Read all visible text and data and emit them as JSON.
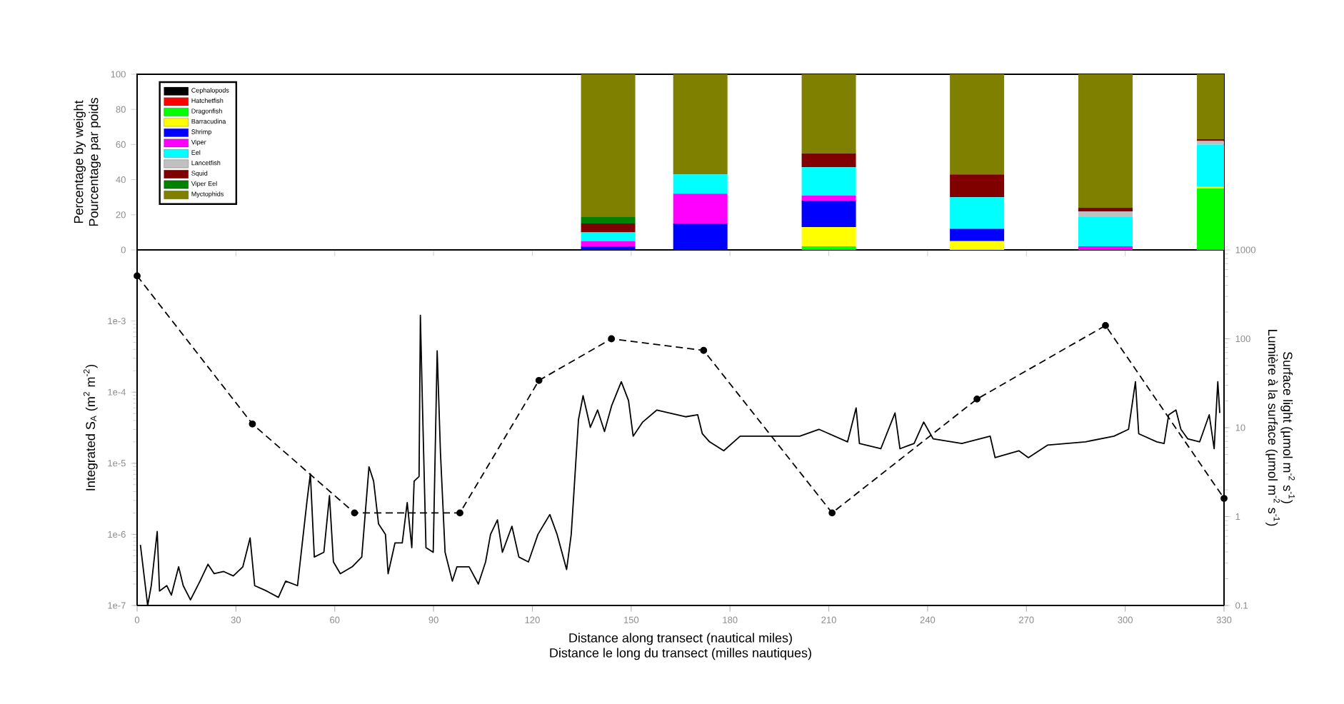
{
  "chart_data": [
    {
      "type": "bar",
      "stacked": true,
      "ylabel": "Percentage by weight\nPourcentage par poids",
      "x": [
        143,
        171,
        210,
        255,
        294,
        330
      ],
      "xlim": [
        0,
        330
      ],
      "xticks": [
        0,
        30,
        60,
        90,
        120,
        150,
        180,
        210,
        240,
        270,
        300,
        330
      ],
      "ylim": [
        0,
        100
      ],
      "yticks": [
        0,
        20,
        40,
        60,
        80,
        100
      ],
      "tick_labels": "y",
      "legend": "top left",
      "series": [
        {
          "name": "Cephalopods",
          "color": "#000000",
          "values": [
            0,
            0,
            0,
            0,
            0,
            0
          ]
        },
        {
          "name": "Hatchetfish",
          "color": "#ff0000",
          "values": [
            0,
            0,
            0,
            0,
            0,
            0
          ]
        },
        {
          "name": "Dragonfish",
          "color": "#00ff00",
          "values": [
            0,
            0,
            2,
            0,
            0,
            35
          ]
        },
        {
          "name": "Barracudina",
          "color": "#ffff00",
          "values": [
            0,
            0,
            11,
            5,
            0,
            1
          ]
        },
        {
          "name": "Shrimp",
          "color": "#0000ff",
          "values": [
            2,
            15,
            15,
            7,
            0,
            0
          ]
        },
        {
          "name": "Viper",
          "color": "#ff00ff",
          "values": [
            3,
            17,
            3,
            0,
            2,
            0
          ]
        },
        {
          "name": "Eel",
          "color": "#00ffff",
          "values": [
            5,
            11,
            16,
            18,
            17,
            24
          ]
        },
        {
          "name": "Lancetfish",
          "color": "#c0c0c0",
          "values": [
            0,
            0,
            0,
            0,
            3,
            2
          ]
        },
        {
          "name": "Squid",
          "color": "#800000",
          "values": [
            5,
            0,
            8,
            13,
            2,
            1
          ]
        },
        {
          "name": "Viper Eel",
          "color": "#008000",
          "values": [
            4,
            0,
            0,
            0,
            0,
            0
          ]
        },
        {
          "name": "Myctophids",
          "color": "#808000",
          "values": [
            81,
            57,
            45,
            57,
            76,
            37
          ]
        }
      ]
    },
    {
      "type": "line",
      "xlabel": "Distance along transect (nautical miles)\nDistance le long du transect (milles nautiques)",
      "ylabel": "Integrated S$_{A}$ (m$^{2}$ m$^{-2}$)",
      "xlim": [
        0,
        330
      ],
      "xticks": [
        0,
        30,
        60,
        90,
        120,
        150,
        180,
        210,
        240,
        270,
        300,
        330
      ],
      "ylim": [
        1e-07,
        0.01
      ],
      "yticks": [
        {
          "value": 1e-07,
          "label": "1e-7"
        },
        {
          "value": 1e-06,
          "label": "1e-6"
        },
        {
          "value": 1e-05,
          "label": "1e-5"
        },
        {
          "value": 0.0001,
          "label": "1e-4"
        },
        {
          "value": 0.001,
          "label": "1e-3"
        }
      ],
      "log": true,
      "series": [
        {
          "color": "#000000",
          "line_style": "solid",
          "marker": "none",
          "x": [
            1.0,
            3.2,
            4.3,
            6.1,
            6.8,
            9.0,
            10.4,
            12.6,
            14.0,
            16.2,
            19.1,
            21.5,
            23.4,
            26.3,
            29.2,
            32.1,
            34.3,
            35.7,
            39.3,
            42.9,
            45.1,
            48.7,
            51.6,
            52.6,
            53.8,
            56.7,
            58.4,
            59.6,
            61.7,
            65.3,
            68.2,
            70.4,
            71.8,
            73.3,
            75.4,
            76.2,
            78.3,
            80.5,
            82.0,
            83.4,
            84.1,
            85.6,
            86.0,
            86.6,
            87.7,
            89.9,
            91.1,
            92.1,
            93.5,
            95.7,
            97.1,
            100.8,
            103.6,
            105.8,
            107.3,
            109.4,
            110.9,
            113.8,
            115.9,
            118.8,
            121.7,
            125.3,
            127.5,
            130.4,
            131.8,
            132.6,
            134.0,
            135.4,
            137.6,
            139.8,
            141.9,
            144.1,
            147.0,
            149.2,
            150.6,
            153.5,
            157.8,
            166.5,
            170.2,
            171.6,
            173.8,
            178.1,
            183.1,
            192.5,
            201.2,
            207.0,
            215.7,
            218.3,
            219.3,
            225.8,
            230.1,
            231.6,
            235.9,
            238.8,
            241.7,
            250.4,
            259.0,
            260.5,
            267.7,
            270.6,
            276.4,
            287.9,
            296.6,
            301.0,
            303.1,
            304.1,
            309.6,
            311.8,
            313.2,
            315.4,
            316.9,
            319.0,
            322.6,
            325.5,
            327.0,
            328.1,
            328.7
          ],
          "values": [
            7.1e-07,
            1e-07,
            1.9e-07,
            1.1e-06,
            1.6e-07,
            1.9e-07,
            1.4e-07,
            3.5e-07,
            1.9e-07,
            1.2e-07,
            2.2e-07,
            3.8e-07,
            2.8e-07,
            3e-07,
            2.6e-07,
            3.5e-07,
            8.9e-07,
            1.9e-07,
            1.6e-07,
            1.3e-07,
            2.2e-07,
            1.9e-07,
            3e-06,
            7.1e-06,
            4.8e-07,
            5.6e-07,
            3.5e-06,
            4.1e-07,
            2.8e-07,
            3.5e-07,
            4.8e-07,
            8.9e-06,
            5.6e-06,
            1.4e-06,
            1e-06,
            2.8e-07,
            7.6e-07,
            7.6e-07,
            2.8e-06,
            6.5e-07,
            5.6e-06,
            6.5e-06,
            0.0012,
            7.6e-05,
            6.5e-07,
            5.6e-07,
            0.00038,
            1.4e-05,
            5.6e-07,
            2.2e-07,
            3.5e-07,
            3.5e-07,
            2e-07,
            4.1e-07,
            1e-06,
            1.6e-06,
            5.6e-07,
            1.3e-06,
            4.8e-07,
            4.1e-07,
            1e-06,
            1.9e-06,
            1e-06,
            3.2e-07,
            1e-06,
            3.8e-06,
            4.1e-05,
            8.9e-05,
            3.2e-05,
            5.6e-05,
            2.8e-05,
            6.5e-05,
            0.00014,
            7.6e-05,
            2.4e-05,
            3.8e-05,
            5.6e-05,
            4.5e-05,
            4.8e-05,
            2.6e-05,
            2e-05,
            1.5e-05,
            2.4e-05,
            2.4e-05,
            2.4e-05,
            3e-05,
            2e-05,
            6e-05,
            1.9e-05,
            1.6e-05,
            5.1e-05,
            1.6e-05,
            1.9e-05,
            3.8e-05,
            2.2e-05,
            1.9e-05,
            2.4e-05,
            1.2e-05,
            1.5e-05,
            1.2e-05,
            1.8e-05,
            2e-05,
            2.4e-05,
            3e-05,
            0.00014,
            2.6e-05,
            2e-05,
            1.9e-05,
            4.8e-05,
            5.6e-05,
            3e-05,
            2.2e-05,
            2e-05,
            4.8e-05,
            1.6e-05,
            0.00014,
            5.1e-05
          ]
        }
      ]
    },
    {
      "type": "line",
      "y2label": "Surface light (µmol m$^{-2}$ s$^{-1}$)\nLumière à la surface (µmol m$^{-2}$ s$^{-1}$)",
      "xlim": [
        0,
        330
      ],
      "xticks": [
        0,
        30,
        60,
        90,
        120,
        150,
        180,
        210,
        240,
        270,
        300,
        330
      ],
      "tick_labels": "y",
      "y2lim": [
        0.1,
        1000
      ],
      "y2ticks": [
        0.1,
        1,
        10,
        100,
        1000
      ],
      "log": "y2",
      "series": [
        {
          "color": "#000000",
          "axis": "y2",
          "line_style": "dashed",
          "marker": "circle",
          "x": [
            0,
            35,
            66,
            98,
            122,
            144,
            172,
            211,
            255,
            294,
            330
          ],
          "values": [
            510,
            11,
            1.1,
            1.1,
            34,
            100,
            74,
            1.1,
            21,
            141,
            1.6
          ]
        }
      ]
    }
  ]
}
